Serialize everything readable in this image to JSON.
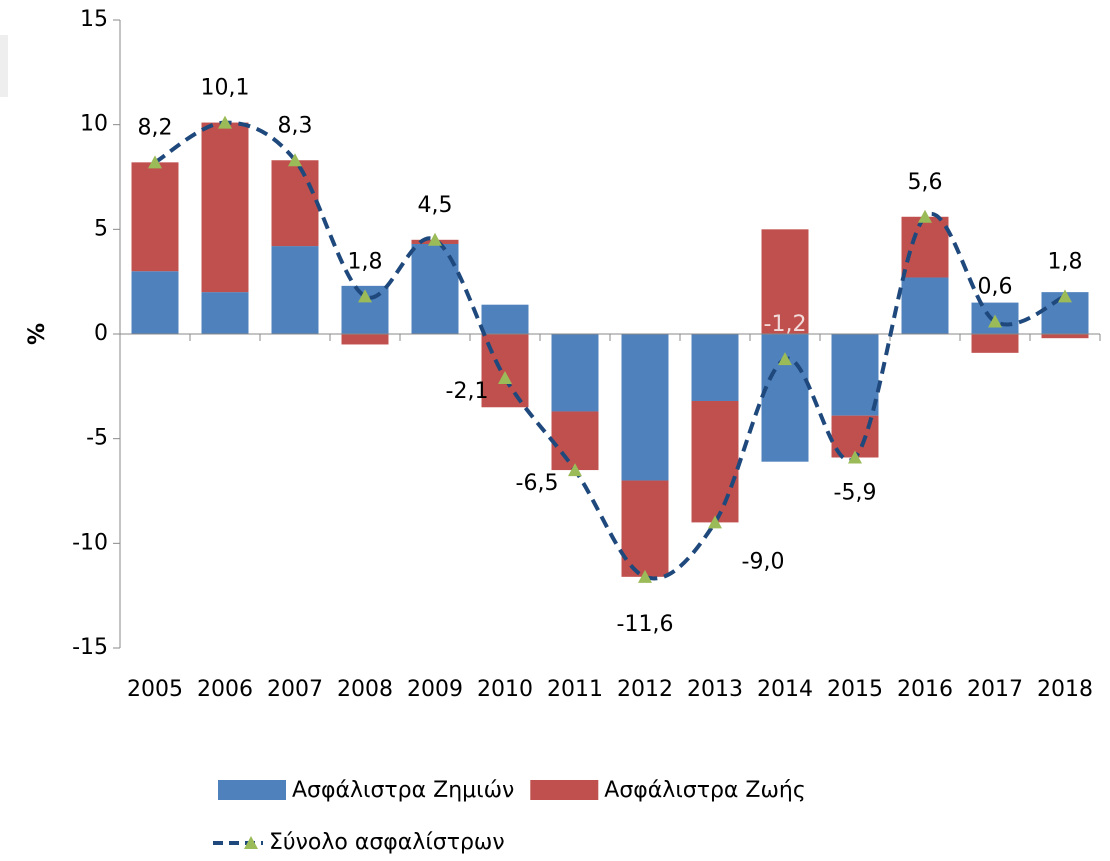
{
  "chart_data": {
    "type": "bar",
    "y_label": "%",
    "categories": [
      "2005",
      "2006",
      "2007",
      "2008",
      "2009",
      "2010",
      "2011",
      "2012",
      "2013",
      "2014",
      "2015",
      "2016",
      "2017",
      "2018"
    ],
    "series": [
      {
        "name": "Ασφάλιστρα Ζημιών",
        "color": "#4f81bd",
        "values": [
          3.0,
          2.0,
          4.2,
          2.3,
          4.3,
          1.4,
          -3.7,
          -7.0,
          -3.2,
          -6.1,
          -3.9,
          2.7,
          1.5,
          2.0
        ]
      },
      {
        "name": "Ασφάλιστρα Ζωής",
        "color": "#c0504d",
        "values": [
          5.2,
          8.1,
          4.1,
          -0.5,
          0.2,
          -3.5,
          -2.8,
          -4.6,
          -5.8,
          5.0,
          -2.0,
          2.9,
          -0.9,
          -0.2
        ]
      },
      {
        "name": "Σύνολο ασφαλίστρων",
        "type": "line",
        "color": "#1f497d",
        "marker_color": "#9bbb59",
        "line_style": "dashed",
        "values": [
          8.2,
          10.1,
          8.3,
          1.8,
          4.5,
          -2.1,
          -6.5,
          -11.6,
          -9.0,
          -1.2,
          -5.9,
          5.6,
          0.6,
          1.8
        ],
        "value_labels": [
          "8,2",
          "10,1",
          "8,3",
          "1,8",
          "4,5",
          "-2,1",
          "-6,5",
          "-11,6",
          "-9,0",
          "-1,2",
          "-5,9",
          "5,6",
          "0,6",
          "1,8"
        ]
      }
    ],
    "stacked": true,
    "ylim": [
      -15,
      15
    ],
    "yticks": [
      -15,
      -10,
      -5,
      0,
      5,
      10,
      15
    ]
  }
}
